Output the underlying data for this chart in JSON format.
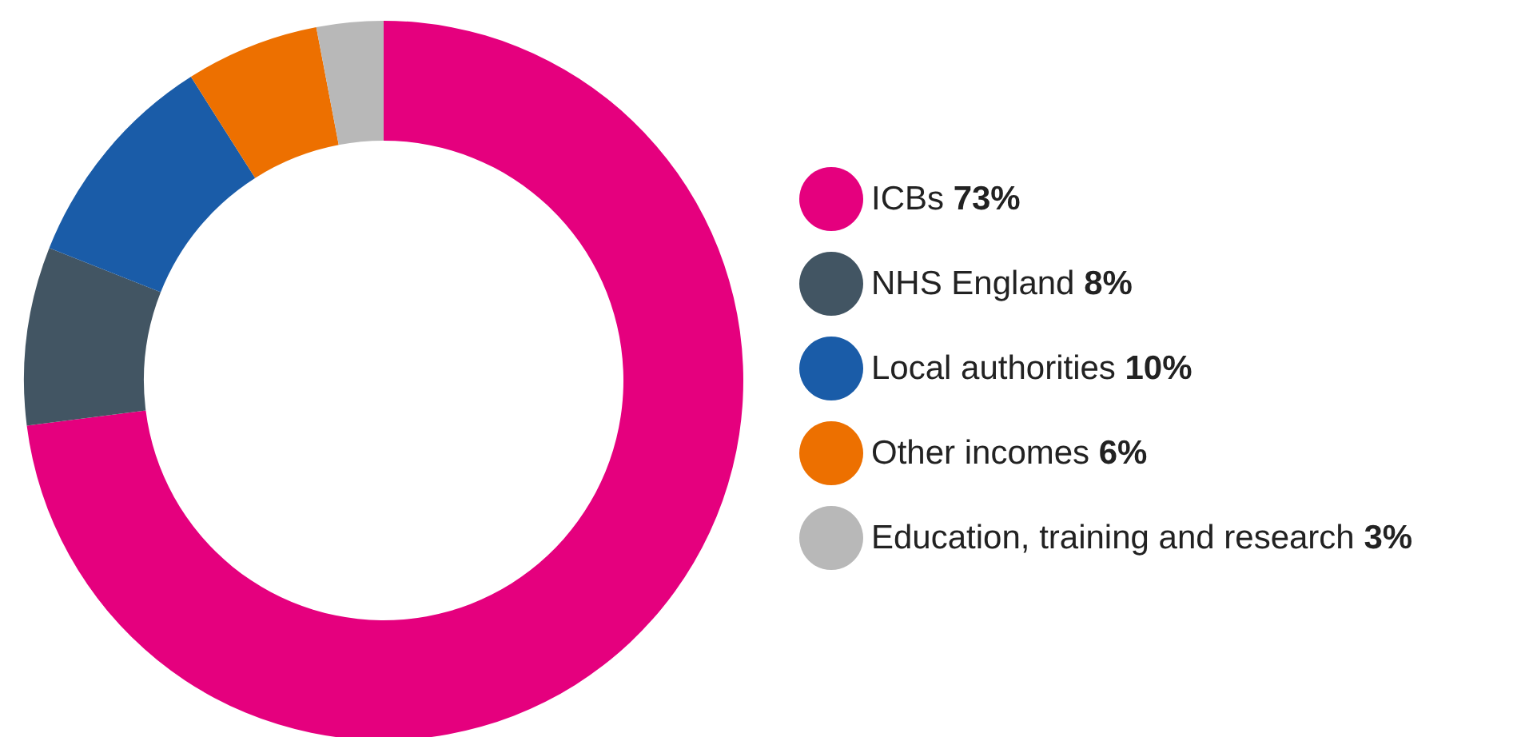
{
  "chart_data": {
    "type": "donut",
    "categories": [
      "ICBs",
      "NHS England",
      "Local authorities",
      "Other incomes",
      "Education, training and research"
    ],
    "values": [
      73,
      8,
      10,
      6,
      3
    ],
    "colors": [
      "#e5007e",
      "#425563",
      "#1a5ca8",
      "#ed7000",
      "#b8b8b8"
    ],
    "value_labels": [
      "73%",
      "8%",
      "10%",
      "6%",
      "3%"
    ],
    "legend": "right"
  }
}
